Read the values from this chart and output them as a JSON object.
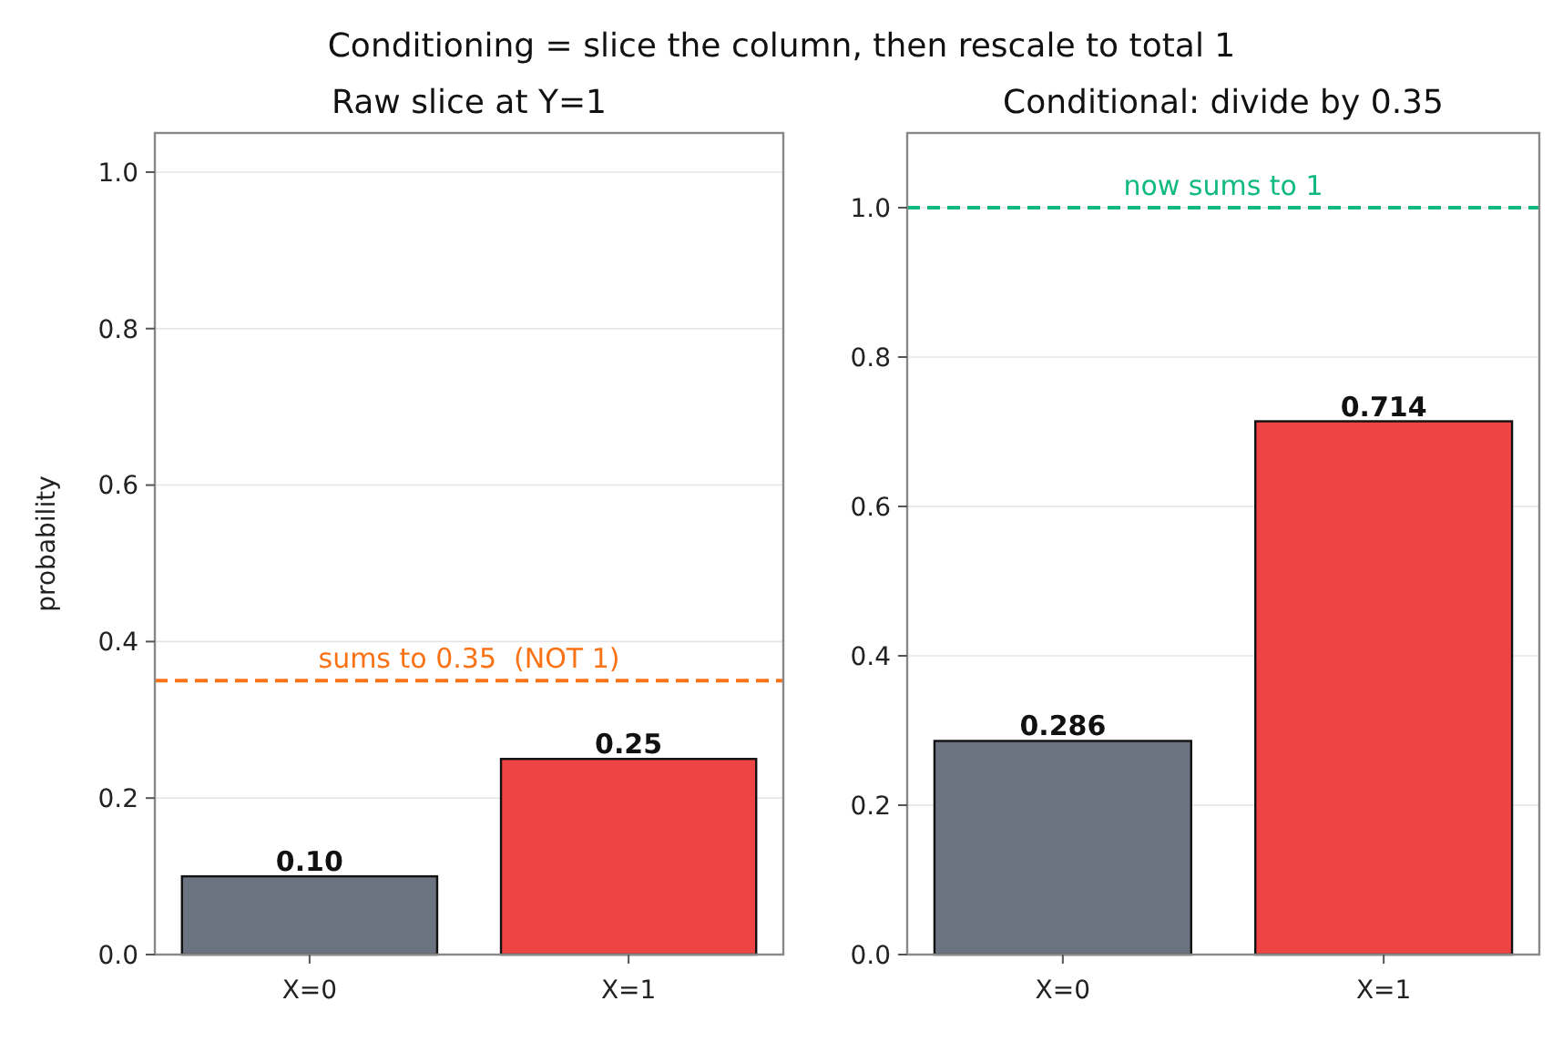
{
  "chart_data": [
    {
      "type": "bar",
      "title": "Conditioning = slice the column, then rescale to total 1",
      "subtitle": "Raw slice at Y=1",
      "ylabel": "probability",
      "categories": [
        "X=0",
        "X=1"
      ],
      "values": [
        0.1,
        0.25
      ],
      "colors": [
        "#6b7280",
        "#ef4444"
      ],
      "value_labels": [
        "0.10",
        "0.25"
      ],
      "ylim": [
        0,
        1.05
      ],
      "yticks": [
        {
          "value": 0,
          "label": "0.0"
        },
        {
          "value": 0.2,
          "label": "0.2"
        },
        {
          "value": 0.4,
          "label": "0.4"
        },
        {
          "value": 0.6,
          "label": "0.6"
        },
        {
          "value": 0.8,
          "label": "0.8"
        },
        {
          "value": 1,
          "label": "1.0"
        }
      ],
      "grid": "y",
      "ref_lines": [
        {
          "axis": "y",
          "value": 0.35,
          "label": "sums to 0.35  (NOT 1)",
          "color": "#f97316",
          "line_style": "dashed"
        }
      ]
    },
    {
      "type": "bar",
      "title": "Conditional: divide by 0.35",
      "categories": [
        "X=0",
        "X=1"
      ],
      "values": [
        0.286,
        0.714
      ],
      "colors": [
        "#6b7280",
        "#ef4444"
      ],
      "data_labels": true,
      "ylim": [
        0,
        1.1
      ],
      "yticks": [
        {
          "value": 0,
          "label": "0.0"
        },
        {
          "value": 0.2,
          "label": "0.2"
        },
        {
          "value": 0.4,
          "label": "0.4"
        },
        {
          "value": 0.6,
          "label": "0.6"
        },
        {
          "value": 0.8,
          "label": "0.8"
        },
        {
          "value": 1,
          "label": "1.0"
        }
      ],
      "grid": "y",
      "ref_lines": [
        {
          "axis": "y",
          "value": 1,
          "label": "now sums to 1",
          "color": "#10b981",
          "line_style": "dashed"
        }
      ]
    }
  ]
}
